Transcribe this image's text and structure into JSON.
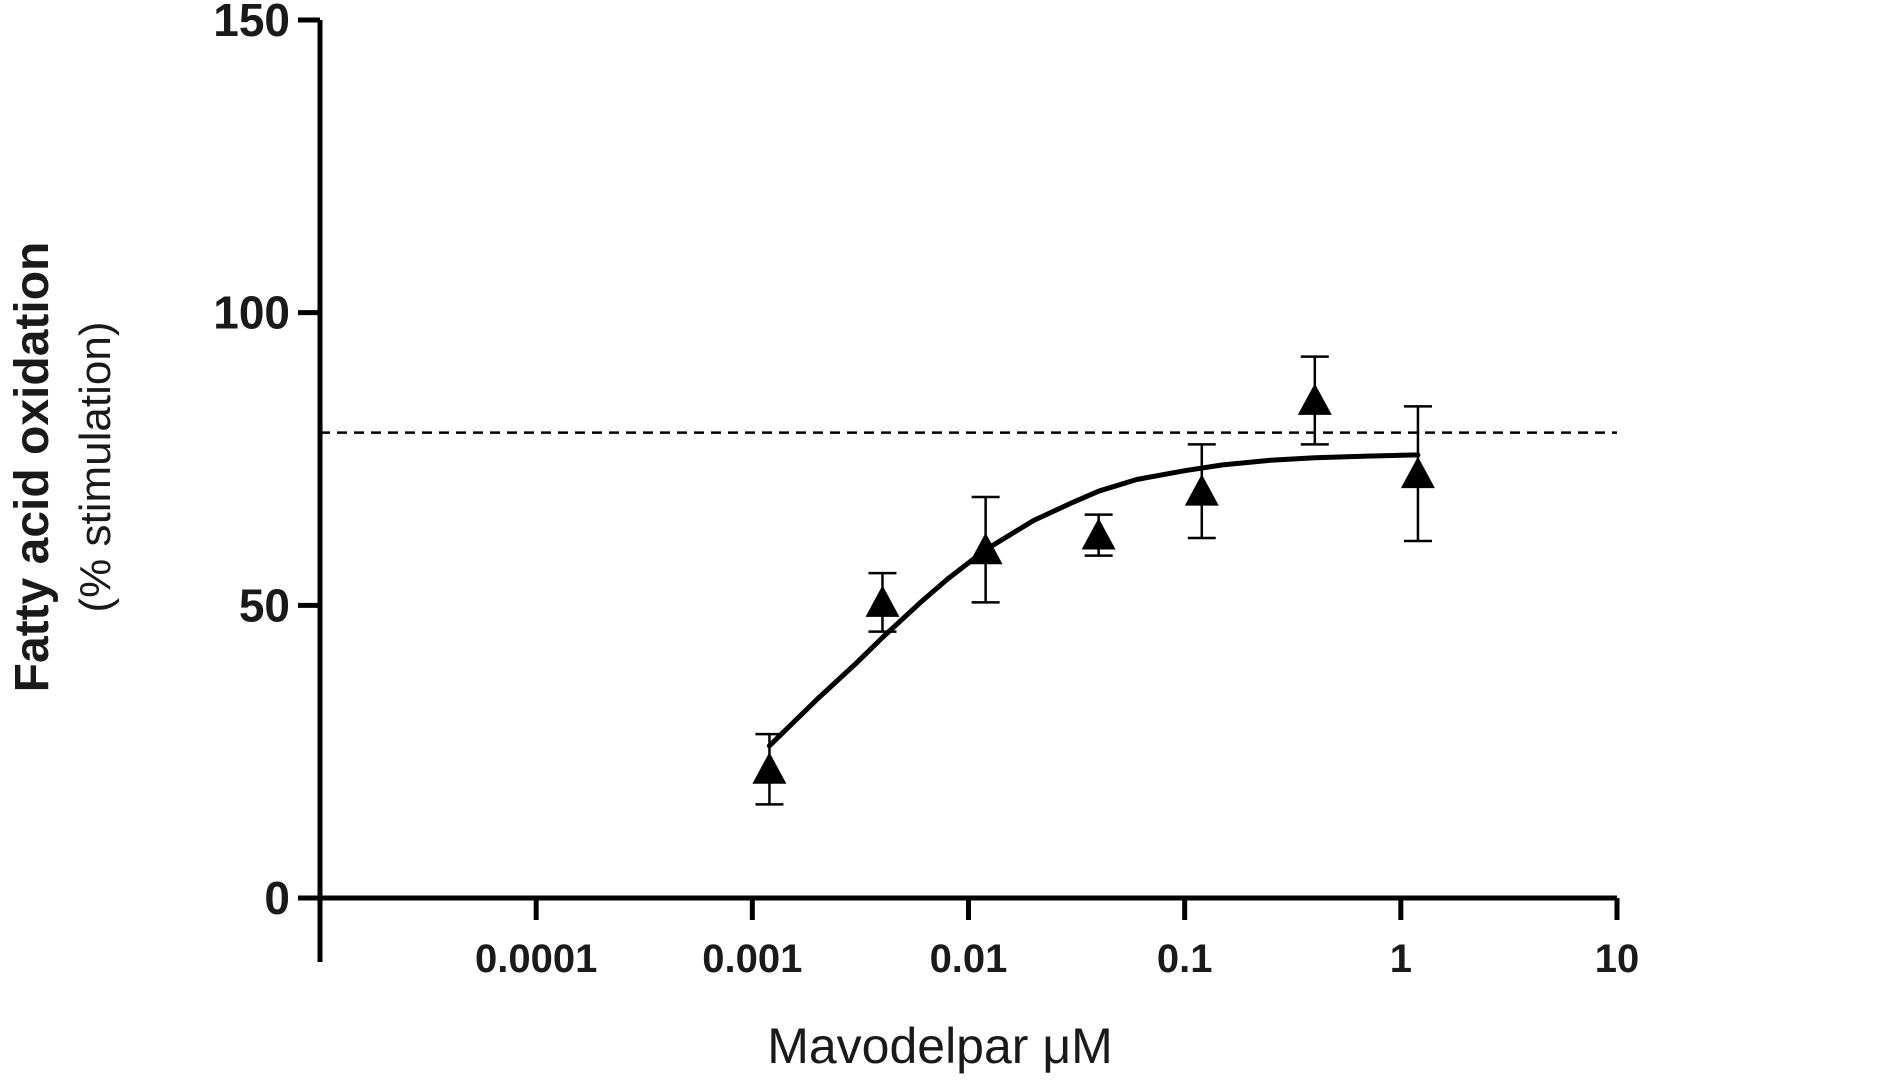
{
  "chart_data": {
    "type": "scatter",
    "title": "",
    "xlabel": "Mavodelpar μM",
    "ylabel": "Fatty acid oxidation",
    "ylabel_line2": "(% stimulation)",
    "x_scale": "log",
    "xlim": [
      1e-05,
      10
    ],
    "ylim": [
      0,
      150
    ],
    "x_ticks": [
      0.0001,
      0.001,
      0.01,
      0.1,
      1,
      10
    ],
    "x_tick_labels": [
      "0.0001",
      "0.001",
      "0.01",
      "0.1",
      "1",
      "10"
    ],
    "y_ticks": [
      0,
      50,
      100,
      150
    ],
    "y_tick_labels": [
      "0",
      "50",
      "100",
      "150"
    ],
    "grid": false,
    "marker": "triangle",
    "points": [
      {
        "x": 0.0012,
        "y": 22,
        "err_low": 6,
        "err_high": 6
      },
      {
        "x": 0.004,
        "y": 50.5,
        "err_low": 5,
        "err_high": 5
      },
      {
        "x": 0.012,
        "y": 59.5,
        "err_low": 9,
        "err_high": 9
      },
      {
        "x": 0.04,
        "y": 62,
        "err_low": 3.5,
        "err_high": 3.5
      },
      {
        "x": 0.12,
        "y": 69.5,
        "err_low": 8,
        "err_high": 8
      },
      {
        "x": 0.4,
        "y": 85,
        "err_low": 7.5,
        "err_high": 7.5
      },
      {
        "x": 1.2,
        "y": 72.5,
        "err_low": 11.5,
        "err_high": 11.5
      }
    ],
    "fit_curve": {
      "x": [
        0.0012,
        0.002,
        0.003,
        0.004,
        0.006,
        0.008,
        0.012,
        0.02,
        0.03,
        0.04,
        0.06,
        0.1,
        0.15,
        0.25,
        0.4,
        0.7,
        1.2
      ],
      "y": [
        26,
        34,
        40,
        44.5,
        50.5,
        54.5,
        59.5,
        64.5,
        67.5,
        69.5,
        71.5,
        73,
        74,
        74.8,
        75.2,
        75.5,
        75.7
      ]
    },
    "reference_line": {
      "y": 79.5,
      "style": "dashed"
    },
    "colors": {
      "marker": "#000000",
      "line": "#000000",
      "axis": "#000000"
    }
  }
}
